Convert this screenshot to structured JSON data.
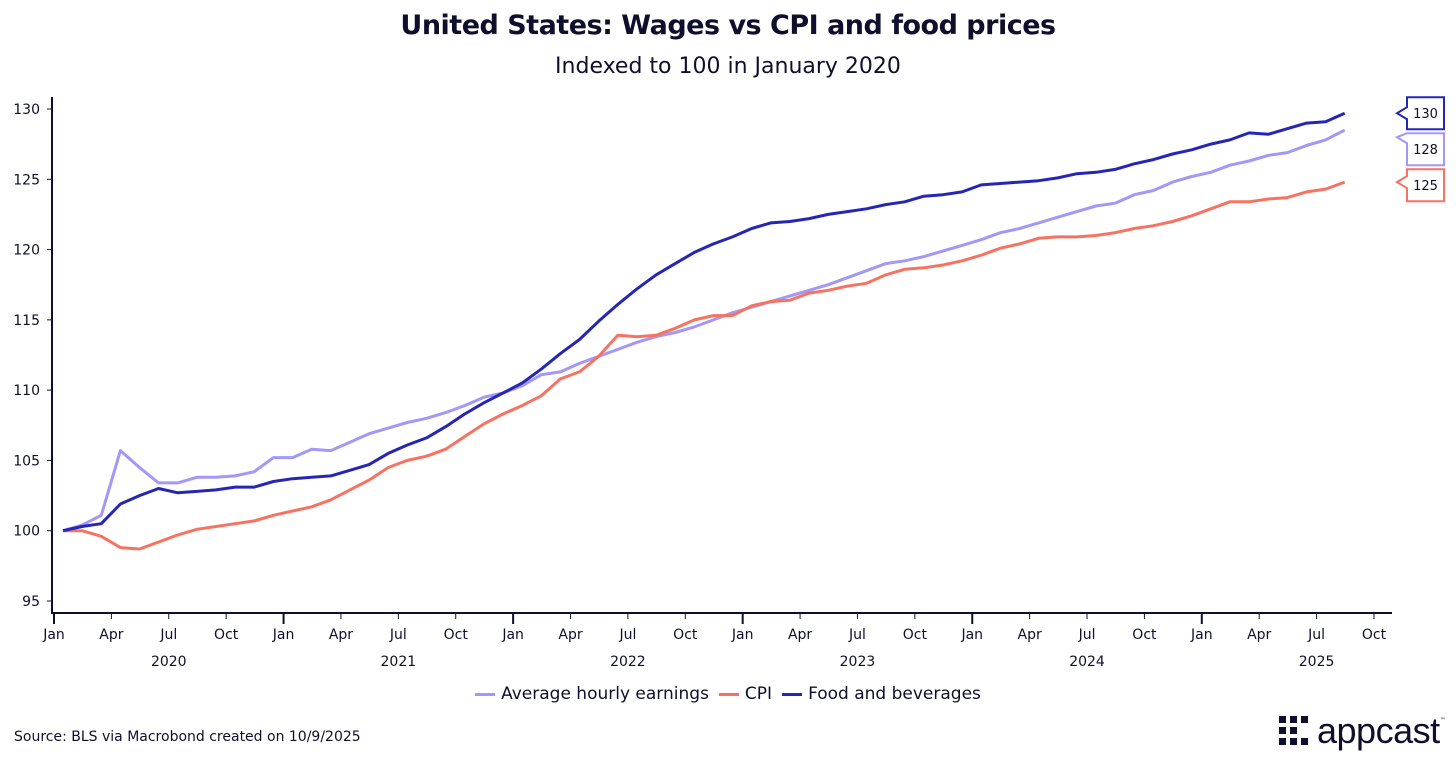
{
  "chart_data": {
    "type": "line",
    "title": "United States: Wages vs CPI and food prices",
    "subtitle": "Indexed to 100 in January 2020",
    "xlabel": "",
    "ylabel": "",
    "x_start": "2020-01",
    "x_end": "2025-08",
    "frequency": "monthly",
    "ylim": [
      95,
      130
    ],
    "yticks": [
      95,
      100,
      105,
      110,
      115,
      120,
      125,
      130
    ],
    "xtick_months": [
      "Jan",
      "Apr",
      "Jul",
      "Oct"
    ],
    "xtick_years": [
      "2020",
      "2021",
      "2022",
      "2023",
      "2024",
      "2025"
    ],
    "grid": false,
    "legend_position": "bottom",
    "series": [
      {
        "name": "Average hourly earnings",
        "color": "#a397f7",
        "end_label": "128",
        "values": [
          100,
          100.4,
          101.1,
          105.7,
          104.5,
          103.4,
          103.4,
          103.8,
          103.8,
          103.9,
          104.2,
          105.2,
          105.2,
          105.8,
          105.7,
          106.3,
          106.9,
          107.3,
          107.7,
          108.0,
          108.4,
          108.9,
          109.5,
          109.8,
          110.3,
          111.1,
          111.3,
          111.9,
          112.4,
          112.9,
          113.4,
          113.8,
          114.1,
          114.5,
          115.0,
          115.5,
          115.9,
          116.3,
          116.7,
          117.1,
          117.5,
          118.0,
          118.5,
          119.0,
          119.2,
          119.5,
          119.9,
          120.3,
          120.7,
          121.2,
          121.5,
          121.9,
          122.3,
          122.7,
          123.1,
          123.3,
          123.9,
          124.2,
          124.8,
          125.2,
          125.5,
          126.0,
          126.3,
          126.7,
          126.9,
          127.4,
          127.8,
          128.5
        ]
      },
      {
        "name": "CPI",
        "color": "#f87262",
        "end_label": "125",
        "values": [
          100,
          100.0,
          99.6,
          98.8,
          98.7,
          99.2,
          99.7,
          100.1,
          100.3,
          100.5,
          100.7,
          101.1,
          101.4,
          101.7,
          102.2,
          102.9,
          103.6,
          104.5,
          105.0,
          105.3,
          105.8,
          106.7,
          107.6,
          108.3,
          108.9,
          109.6,
          110.8,
          111.3,
          112.4,
          113.9,
          113.8,
          113.9,
          114.4,
          115.0,
          115.3,
          115.3,
          116.0,
          116.3,
          116.4,
          116.9,
          117.1,
          117.4,
          117.6,
          118.2,
          118.6,
          118.7,
          118.9,
          119.2,
          119.6,
          120.1,
          120.4,
          120.8,
          120.9,
          120.9,
          121.0,
          121.2,
          121.5,
          121.7,
          122.0,
          122.4,
          122.9,
          123.4,
          123.4,
          123.6,
          123.7,
          124.1,
          124.3,
          124.8
        ]
      },
      {
        "name": "Food and beverages",
        "color": "#2626b4",
        "end_label": "130",
        "values": [
          100,
          100.3,
          100.5,
          101.9,
          102.5,
          103.0,
          102.7,
          102.8,
          102.9,
          103.1,
          103.1,
          103.5,
          103.7,
          103.8,
          103.9,
          104.3,
          104.7,
          105.5,
          106.1,
          106.6,
          107.4,
          108.3,
          109.1,
          109.8,
          110.5,
          111.5,
          112.6,
          113.6,
          114.9,
          116.1,
          117.2,
          118.2,
          119.0,
          119.8,
          120.4,
          120.9,
          121.5,
          121.9,
          122.0,
          122.2,
          122.5,
          122.7,
          122.9,
          123.2,
          123.4,
          123.8,
          123.9,
          124.1,
          124.6,
          124.7,
          124.8,
          124.9,
          125.1,
          125.4,
          125.5,
          125.7,
          126.1,
          126.4,
          126.8,
          127.1,
          127.5,
          127.8,
          128.3,
          128.2,
          128.6,
          129.0,
          129.1,
          129.7
        ]
      }
    ]
  },
  "legend": [
    "Average hourly earnings",
    "CPI",
    "Food and beverages"
  ],
  "source": "Source: BLS via Macrobond created on 10/9/2025",
  "logo": {
    "text": "appcast",
    "tm": "™"
  },
  "colors": {
    "text": "#0f0f2d",
    "axis": "#0f0f2d"
  }
}
